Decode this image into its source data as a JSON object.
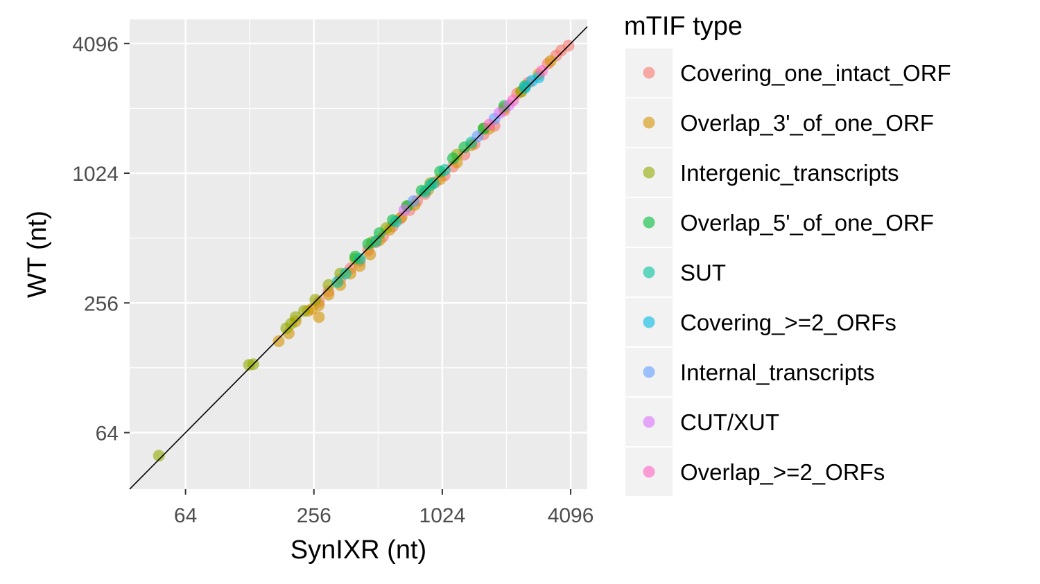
{
  "chart_data": {
    "type": "scatter",
    "title": "",
    "xlabel": "SynIXR (nt)",
    "ylabel": "WT (nt)",
    "x_scale": "log2",
    "y_scale": "log2",
    "xlim": [
      35,
      4900
    ],
    "ylim": [
      35,
      5300
    ],
    "x_ticks": [
      64,
      256,
      1024,
      4096
    ],
    "x_tick_labels": [
      "64",
      "256",
      "1024",
      "4096"
    ],
    "y_ticks": [
      64,
      256,
      1024,
      4096
    ],
    "y_tick_labels": [
      "64",
      "256",
      "1024",
      "4096"
    ],
    "reference_line": "y = x",
    "grid": true,
    "legend": {
      "title": "mTIF type",
      "position": "right"
    },
    "series": [
      {
        "name": "Covering_one_intact_ORF",
        "color": "#F8766D",
        "points": [
          [
            4000,
            4000
          ],
          [
            3700,
            3800
          ],
          [
            3500,
            3600
          ],
          [
            3200,
            3300
          ],
          [
            2600,
            2700
          ],
          [
            2300,
            2400
          ],
          [
            2000,
            2000
          ],
          [
            1800,
            1700
          ],
          [
            1600,
            1550
          ],
          [
            1450,
            1400
          ],
          [
            1300,
            1250
          ],
          [
            1150,
            1100
          ],
          [
            1050,
            1000
          ],
          [
            950,
            930
          ],
          [
            850,
            820
          ],
          [
            780,
            760
          ],
          [
            720,
            690
          ],
          [
            650,
            630
          ],
          [
            600,
            580
          ],
          [
            540,
            520
          ],
          [
            500,
            490
          ],
          [
            460,
            450
          ],
          [
            420,
            400
          ],
          [
            380,
            370
          ],
          [
            340,
            330
          ],
          [
            300,
            290
          ],
          [
            270,
            260
          ]
        ]
      },
      {
        "name": "Overlap_3'_of_one_ORF",
        "color": "#D39200",
        "points": [
          [
            3300,
            3400
          ],
          [
            2900,
            2950
          ],
          [
            2400,
            2450
          ],
          [
            2000,
            2050
          ],
          [
            1700,
            1650
          ],
          [
            1400,
            1380
          ],
          [
            1200,
            1150
          ],
          [
            1000,
            960
          ],
          [
            880,
            860
          ],
          [
            760,
            730
          ],
          [
            660,
            640
          ],
          [
            580,
            560
          ],
          [
            520,
            500
          ],
          [
            470,
            430
          ],
          [
            420,
            380
          ],
          [
            380,
            350
          ],
          [
            340,
            310
          ],
          [
            300,
            280
          ],
          [
            270,
            250
          ],
          [
            250,
            240
          ],
          [
            240,
            235
          ],
          [
            270,
            220
          ],
          [
            210,
            210
          ],
          [
            195,
            185
          ],
          [
            175,
            170
          ]
        ]
      },
      {
        "name": "Intergenic_transcripts",
        "color": "#93AA00",
        "points": [
          [
            48,
            50
          ],
          [
            127,
            132
          ],
          [
            133,
            133
          ],
          [
            190,
            195
          ],
          [
            200,
            205
          ],
          [
            210,
            220
          ],
          [
            230,
            235
          ],
          [
            260,
            265
          ],
          [
            300,
            310
          ],
          [
            340,
            350
          ],
          [
            400,
            410
          ],
          [
            480,
            490
          ],
          [
            560,
            570
          ],
          [
            700,
            720
          ],
          [
            900,
            920
          ],
          [
            1200,
            1250
          ],
          [
            1600,
            1650
          ],
          [
            2400,
            2450
          ]
        ]
      },
      {
        "name": "Overlap_5'_of_one_ORF",
        "color": "#00BA38",
        "points": [
          [
            400,
            420
          ],
          [
            460,
            480
          ],
          [
            520,
            540
          ],
          [
            600,
            620
          ],
          [
            700,
            720
          ],
          [
            820,
            850
          ],
          [
            1000,
            1040
          ],
          [
            1150,
            1200
          ],
          [
            1300,
            1350
          ],
          [
            1600,
            1650
          ],
          [
            2000,
            2100
          ],
          [
            2500,
            2600
          ]
        ]
      },
      {
        "name": "SUT",
        "color": "#00C19F",
        "points": [
          [
            330,
            320
          ],
          [
            360,
            350
          ],
          [
            420,
            410
          ],
          [
            500,
            495
          ],
          [
            620,
            610
          ],
          [
            850,
            840
          ],
          [
            900,
            900
          ],
          [
            930,
            920
          ],
          [
            1050,
            1060
          ],
          [
            1400,
            1420
          ]
        ]
      },
      {
        "name": "Covering_>=2_ORFs",
        "color": "#00B9E3",
        "points": [
          [
            2700,
            2750
          ],
          [
            2900,
            2850
          ],
          [
            2500,
            2550
          ]
        ]
      },
      {
        "name": "Internal_transcripts",
        "color": "#619CFF",
        "points": [
          [
            1500,
            1520
          ],
          [
            1800,
            1830
          ],
          [
            750,
            760
          ]
        ]
      },
      {
        "name": "CUT/XUT",
        "color": "#DB72FB",
        "points": [
          [
            1900,
            1950
          ],
          [
            2100,
            2120
          ],
          [
            680,
            690
          ]
        ]
      },
      {
        "name": "Overlap_>=2_ORFs",
        "color": "#FF61C3",
        "points": [
          [
            1700,
            1720
          ],
          [
            2200,
            2230
          ],
          [
            3000,
            3050
          ]
        ]
      }
    ]
  }
}
